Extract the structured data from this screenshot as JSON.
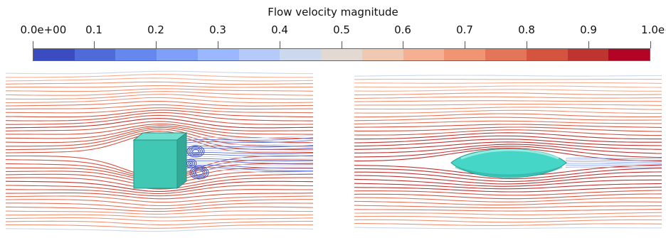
{
  "colorbar": {
    "title": "Flow velocity magnitude",
    "tick_labels": [
      "0.0e+00",
      "0.1",
      "0.2",
      "0.3",
      "0.4",
      "0.5",
      "0.6",
      "0.7",
      "0.8",
      "0.9",
      "1.0e+00"
    ],
    "range": [
      0,
      1
    ],
    "segment_colors": [
      "#3b4cc0",
      "#4f6ad9",
      "#6688ee",
      "#7fa0f8",
      "#9bb7ff",
      "#b5caf8",
      "#ccd8ec",
      "#e2d9d2",
      "#f0c9b3",
      "#f5b094",
      "#f19474",
      "#e57559",
      "#d45440",
      "#bd3431",
      "#b40426"
    ]
  },
  "panels": [
    {
      "obstacle": "cube",
      "obstacle_color": "#40c8b4"
    },
    {
      "obstacle": "ellipsoid",
      "obstacle_color": "#45d6c8"
    }
  ],
  "icons": [
    "streamline-field",
    "cube-obstacle",
    "ellipsoid-obstacle"
  ]
}
